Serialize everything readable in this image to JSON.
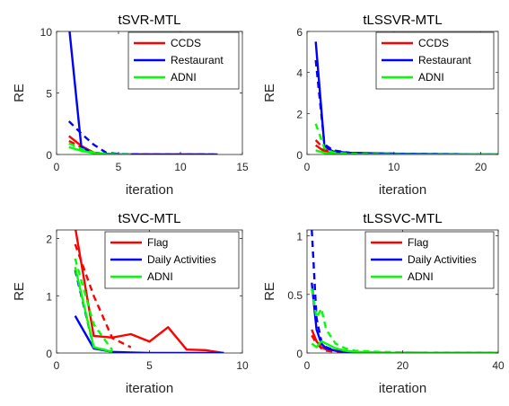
{
  "chart_data": [
    {
      "type": "line",
      "title": "tSVR-MTL",
      "xlabel": "iteration",
      "ylabel": "RE",
      "xlim": [
        0,
        15
      ],
      "ylim": [
        0,
        10
      ],
      "xticks": [
        0,
        5,
        10,
        15
      ],
      "yticks": [
        0,
        5,
        10
      ],
      "legend": {
        "placement": "top-right",
        "entries": [
          "CCDS",
          "Restaurant",
          "ADNI"
        ]
      },
      "series": [
        {
          "name": "CCDS",
          "color": "#ff0000",
          "style": "solid",
          "x": [
            1,
            2,
            3,
            4,
            5,
            6,
            7,
            8,
            9,
            10,
            11,
            12
          ],
          "y": [
            1.5,
            0.7,
            0.15,
            0.05,
            0.02,
            0.01,
            0,
            0,
            0,
            0,
            0,
            0
          ]
        },
        {
          "name": "CCDS",
          "color": "#ff0000",
          "style": "dashed",
          "x": [
            1,
            2,
            3,
            4,
            5,
            6,
            7,
            8
          ],
          "y": [
            1.1,
            0.6,
            0.15,
            0.05,
            0.02,
            0.01,
            0,
            0
          ]
        },
        {
          "name": "Restaurant",
          "color": "#0000ff",
          "style": "solid",
          "x": [
            1,
            2,
            3,
            4,
            5,
            6,
            7,
            8,
            9,
            10,
            11,
            12,
            13
          ],
          "y": [
            10.5,
            0.6,
            0.1,
            0.05,
            0.02,
            0.01,
            0,
            0,
            0,
            0,
            0,
            0,
            0
          ]
        },
        {
          "name": "Restaurant",
          "color": "#0000ff",
          "style": "dashed",
          "x": [
            1,
            2,
            3,
            4,
            5,
            6,
            7,
            8,
            9,
            10,
            11,
            12,
            13
          ],
          "y": [
            2.7,
            1.7,
            0.8,
            0.15,
            0.05,
            0.02,
            0.01,
            0,
            0,
            0,
            0,
            0,
            0
          ]
        },
        {
          "name": "ADNI",
          "color": "#00ff00",
          "style": "solid",
          "x": [
            1,
            2,
            3,
            4,
            5,
            6
          ],
          "y": [
            0.6,
            0.3,
            0.1,
            0.03,
            0.01,
            0
          ]
        },
        {
          "name": "ADNI",
          "color": "#00ff00",
          "style": "dashed",
          "x": [
            1,
            2,
            3,
            4,
            5,
            6
          ],
          "y": [
            0.9,
            0.45,
            0.15,
            0.05,
            0.02,
            0
          ]
        }
      ]
    },
    {
      "type": "line",
      "title": "tLSSVR-MTL",
      "xlabel": "iteration",
      "ylabel": "RE",
      "xlim": [
        0,
        22
      ],
      "ylim": [
        0,
        6
      ],
      "xticks": [
        0,
        10,
        20
      ],
      "yticks": [
        0,
        2,
        4,
        6
      ],
      "legend": {
        "placement": "top-right",
        "entries": [
          "CCDS",
          "Restaurant",
          "ADNI"
        ]
      },
      "series": [
        {
          "name": "CCDS",
          "color": "#ff0000",
          "style": "solid",
          "x": [
            1,
            2,
            3,
            5,
            10,
            15,
            20,
            22
          ],
          "y": [
            0.45,
            0.15,
            0.05,
            0.02,
            0.01,
            0,
            0,
            0
          ]
        },
        {
          "name": "CCDS",
          "color": "#ff0000",
          "style": "dashed",
          "x": [
            1,
            2,
            3,
            5,
            10,
            15,
            20,
            22
          ],
          "y": [
            0.7,
            0.25,
            0.08,
            0.03,
            0.01,
            0,
            0,
            0
          ]
        },
        {
          "name": "Restaurant",
          "color": "#0000ff",
          "style": "solid",
          "x": [
            1,
            2,
            3,
            5,
            10,
            15,
            20,
            22
          ],
          "y": [
            5.5,
            0.4,
            0.15,
            0.08,
            0.04,
            0.02,
            0.01,
            0.01
          ]
        },
        {
          "name": "Restaurant",
          "color": "#0000ff",
          "style": "dashed",
          "x": [
            1,
            2,
            3,
            5,
            10,
            15,
            20,
            22
          ],
          "y": [
            4.6,
            0.5,
            0.2,
            0.08,
            0.04,
            0.02,
            0.01,
            0.01
          ]
        },
        {
          "name": "ADNI",
          "color": "#00ff00",
          "style": "solid",
          "x": [
            1,
            2,
            3,
            5,
            10,
            15,
            20,
            22
          ],
          "y": [
            0.2,
            0.08,
            0.03,
            0.01,
            0,
            0,
            0,
            0
          ]
        },
        {
          "name": "ADNI",
          "color": "#00ff00",
          "style": "dashed",
          "x": [
            1,
            2,
            3,
            5,
            10,
            15,
            20,
            22
          ],
          "y": [
            1.5,
            0.3,
            0.1,
            0.03,
            0.01,
            0,
            0,
            0
          ]
        }
      ]
    },
    {
      "type": "line",
      "title": "tSVC-MTL",
      "xlabel": "iteration",
      "ylabel": "RE",
      "xlim": [
        0,
        10
      ],
      "ylim": [
        0,
        2.15
      ],
      "xticks": [
        0,
        5,
        10
      ],
      "yticks": [
        0,
        1,
        2
      ],
      "legend": {
        "placement": "top-right",
        "entries": [
          "Flag",
          "Daily Activities",
          "ADNI"
        ]
      },
      "series": [
        {
          "name": "Flag",
          "color": "#ff0000",
          "style": "solid",
          "x": [
            1,
            2,
            3,
            4,
            5,
            6,
            7,
            8,
            9
          ],
          "y": [
            2.2,
            0.3,
            0.27,
            0.33,
            0.2,
            0.45,
            0.06,
            0.05,
            0
          ]
        },
        {
          "name": "Flag",
          "color": "#ff0000",
          "style": "dashed",
          "x": [
            1,
            2,
            3,
            4
          ],
          "y": [
            1.9,
            1.0,
            0.26,
            0.1
          ]
        },
        {
          "name": "Daily Activities",
          "color": "#0000ff",
          "style": "solid",
          "x": [
            1,
            2,
            3,
            4,
            5,
            6,
            7,
            8,
            9
          ],
          "y": [
            0.65,
            0.08,
            0.02,
            0.01,
            0,
            0,
            0,
            0,
            0
          ]
        },
        {
          "name": "Daily Activities",
          "color": "#0000ff",
          "style": "dashed",
          "x": [
            1,
            2,
            3
          ],
          "y": [
            1.45,
            0.1,
            0.02
          ]
        },
        {
          "name": "ADNI",
          "color": "#00ff00",
          "style": "solid",
          "x": [
            1,
            2,
            3
          ],
          "y": [
            1.5,
            0.1,
            0.02
          ]
        },
        {
          "name": "ADNI",
          "color": "#00ff00",
          "style": "dashed",
          "x": [
            1,
            2,
            3
          ],
          "y": [
            1.65,
            0.5,
            0.05
          ]
        }
      ]
    },
    {
      "type": "line",
      "title": "tLSSVC-MTL",
      "xlabel": "iteration",
      "ylabel": "RE",
      "xlim": [
        0,
        40
      ],
      "ylim": [
        0,
        1.05
      ],
      "xticks": [
        0,
        20,
        40
      ],
      "yticks": [
        0,
        0.5,
        1
      ],
      "legend": {
        "placement": "top-right",
        "entries": [
          "Flag",
          "Daily Activities",
          "ADNI"
        ]
      },
      "series": [
        {
          "name": "Flag",
          "color": "#ff0000",
          "style": "solid",
          "x": [
            1,
            2,
            3,
            4,
            6,
            8,
            10,
            15,
            20,
            30,
            40
          ],
          "y": [
            0.2,
            0.1,
            0.05,
            0.03,
            0.02,
            0.01,
            0.005,
            0,
            0,
            0,
            0
          ]
        },
        {
          "name": "Flag",
          "color": "#ff0000",
          "style": "dashed",
          "x": [
            1,
            2,
            3,
            4,
            6,
            8,
            10,
            15,
            20,
            30,
            40
          ],
          "y": [
            0.15,
            0.08,
            0.04,
            0.02,
            0.01,
            0.005,
            0,
            0,
            0,
            0,
            0
          ]
        },
        {
          "name": "Daily Activities",
          "color": "#0000ff",
          "style": "solid",
          "x": [
            1,
            2,
            3,
            4,
            6,
            8,
            10,
            15,
            20,
            30,
            40
          ],
          "y": [
            0.6,
            0.2,
            0.08,
            0.04,
            0.02,
            0.01,
            0.005,
            0,
            0,
            0,
            0
          ]
        },
        {
          "name": "Daily Activities",
          "color": "#0000ff",
          "style": "dashed",
          "x": [
            1,
            2,
            3,
            4,
            6,
            8,
            10,
            15,
            20,
            30,
            40
          ],
          "y": [
            1.05,
            0.3,
            0.1,
            0.05,
            0.02,
            0.01,
            0.005,
            0,
            0,
            0,
            0
          ]
        },
        {
          "name": "ADNI",
          "color": "#00ff00",
          "style": "solid",
          "x": [
            1,
            2,
            3,
            4,
            6,
            8,
            10,
            15,
            20,
            30,
            40
          ],
          "y": [
            0.08,
            0.05,
            0.1,
            0.08,
            0.04,
            0.02,
            0.01,
            0.005,
            0,
            0,
            0
          ]
        },
        {
          "name": "ADNI",
          "color": "#00ff00",
          "style": "dashed",
          "x": [
            1,
            2,
            3,
            4,
            6,
            8,
            10,
            15,
            20,
            30,
            40
          ],
          "y": [
            0.55,
            0.3,
            0.38,
            0.2,
            0.08,
            0.04,
            0.02,
            0.01,
            0.005,
            0,
            0
          ]
        }
      ]
    }
  ]
}
